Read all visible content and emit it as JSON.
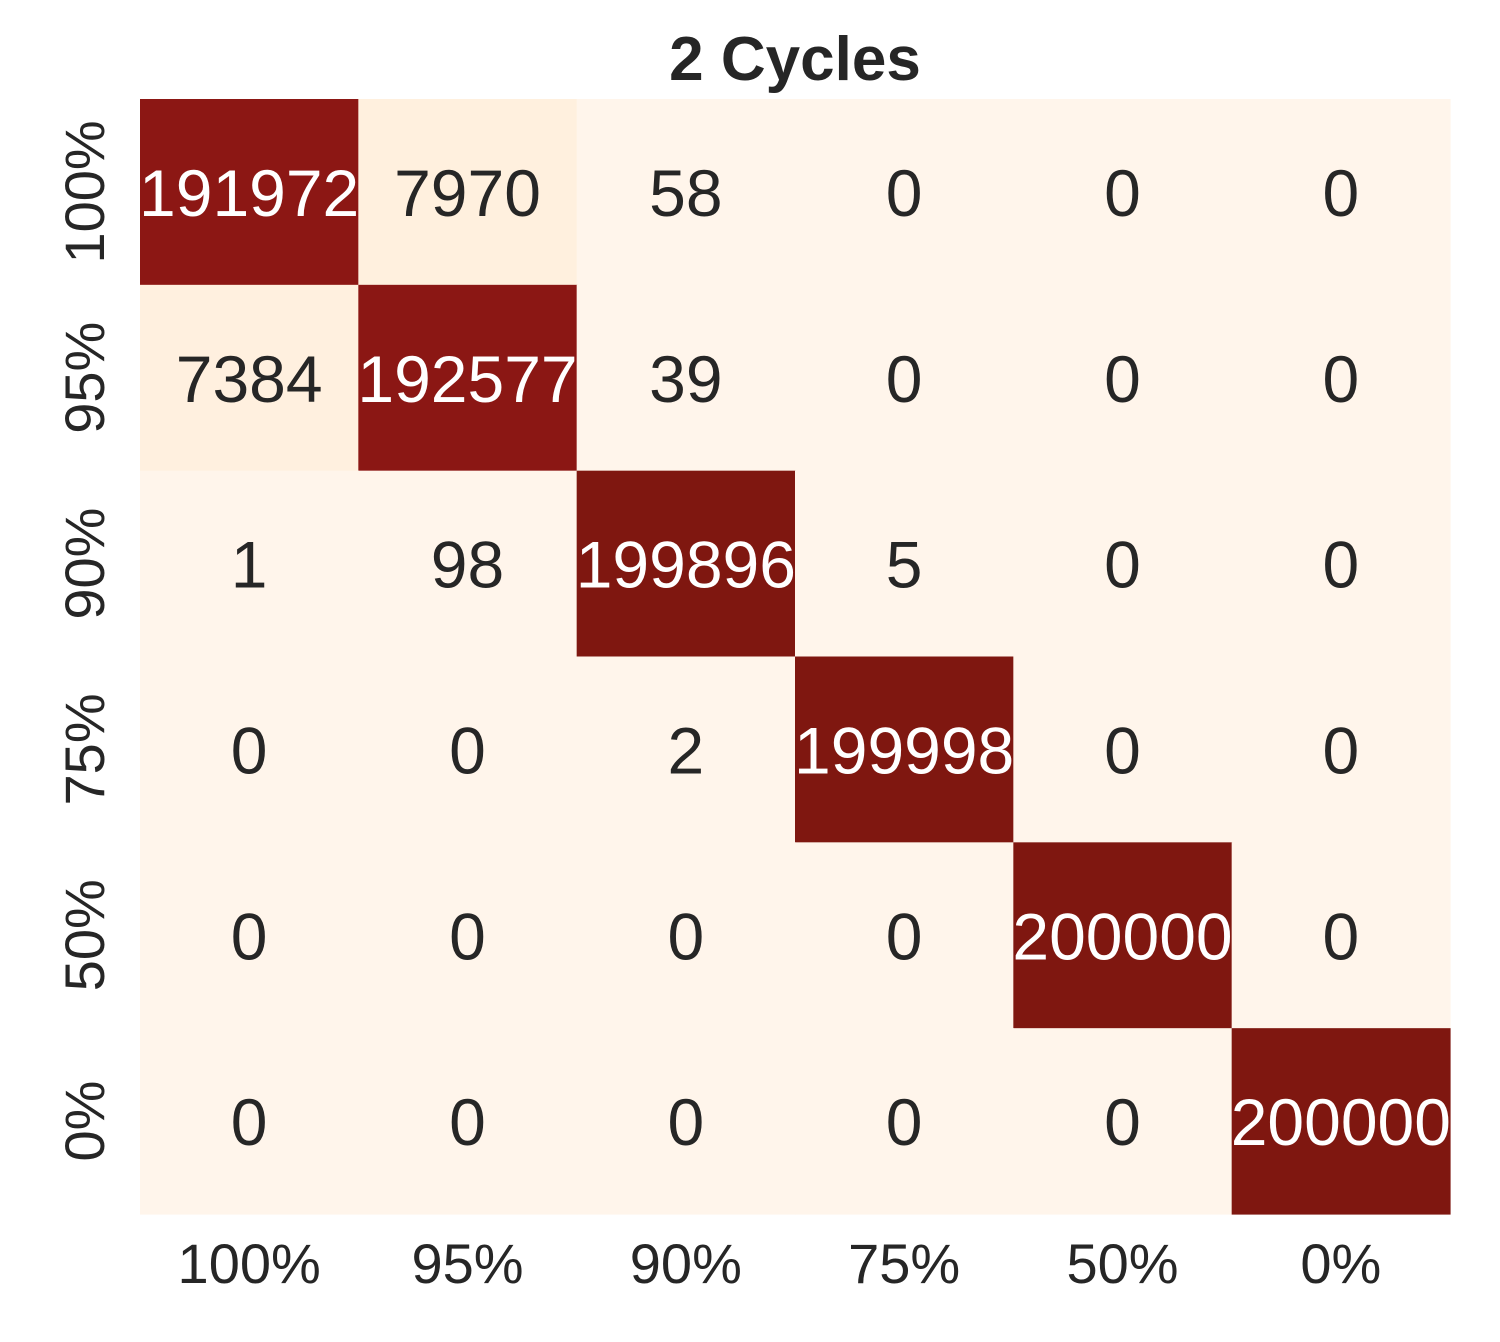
{
  "chart_data": {
    "type": "heatmap",
    "title": "2 Cycles",
    "xlabel": "",
    "ylabel": "",
    "x_categories": [
      "100%",
      "95%",
      "90%",
      "75%",
      "50%",
      "0%"
    ],
    "y_categories": [
      "100%",
      "95%",
      "90%",
      "75%",
      "50%",
      "0%"
    ],
    "values": [
      [
        191972,
        7970,
        58,
        0,
        0,
        0
      ],
      [
        7384,
        192577,
        39,
        0,
        0,
        0
      ],
      [
        1,
        98,
        199896,
        5,
        0,
        0
      ],
      [
        0,
        0,
        2,
        199998,
        0,
        0
      ],
      [
        0,
        0,
        0,
        0,
        200000,
        0
      ],
      [
        0,
        0,
        0,
        0,
        0,
        200000
      ]
    ],
    "colormap": "Reds",
    "colors": {
      "low": "#fff5eb",
      "mid": "#fff0de",
      "high": "#8c1714",
      "max": "#7f1710",
      "text_dark": "#262626",
      "text_light": "#ffffff"
    },
    "colorbar": false,
    "grid": false
  }
}
